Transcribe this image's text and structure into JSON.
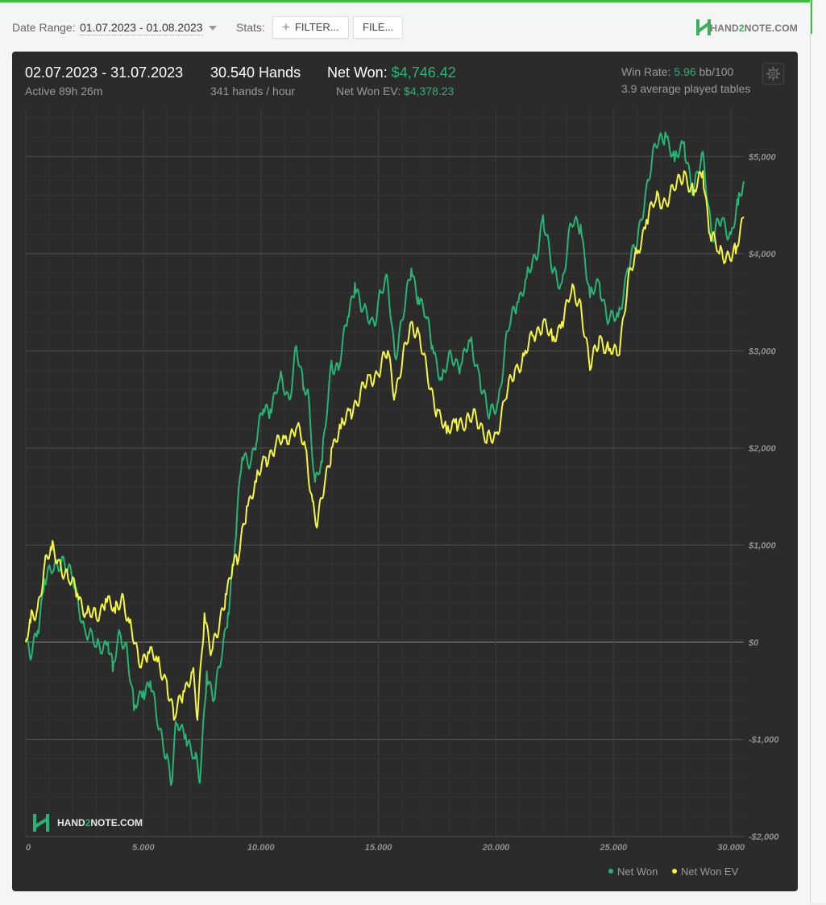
{
  "toolbar": {
    "date_range_label": "Date Range:",
    "date_range_value": "01.07.2023 - 01.08.2023",
    "stats_label": "Stats:",
    "filter_button": "FILTER...",
    "file_button": "FILE..."
  },
  "brand": {
    "logo_prefix": "HAND",
    "logo_two": "2",
    "logo_suffix": "NOTE.COM",
    "accent": "#3cbf3c",
    "green": "#26b573",
    "yellow": "#f5f542"
  },
  "summary": {
    "period": "02.07.2023 - 31.07.2023",
    "active": "Active 89h 26m",
    "hands": "30.540 Hands",
    "hands_per_hour": "341 hands / hour",
    "net_won_label": "Net Won:",
    "net_won_value": "$4,746.42",
    "net_won_ev_label": "Net Won  EV:",
    "net_won_ev_value": "$4,378.23",
    "win_rate_label": "Win Rate:",
    "win_rate_value": "5.96",
    "win_rate_unit": "bb/100",
    "tables": "3.9 average played tables"
  },
  "chart_data": {
    "type": "line",
    "xlim": [
      0,
      30540
    ],
    "ylim": [
      -2000,
      5500
    ],
    "x_ticks": [
      0,
      5000,
      10000,
      15000,
      20000,
      25000,
      30000
    ],
    "x_tick_labels": [
      "0",
      "5.000",
      "10.000",
      "15.000",
      "20.000",
      "25.000",
      "30.000"
    ],
    "y_ticks": [
      -2000,
      -1000,
      0,
      1000,
      2000,
      3000,
      4000,
      5000
    ],
    "y_tick_labels": [
      "-$2,000",
      "-$1,000",
      "$0",
      "$1,000",
      "$2,000",
      "$3,000",
      "$4,000",
      "$5,000"
    ],
    "grid": true,
    "legend_position": "bottom-right",
    "series": [
      {
        "name": "Net Won",
        "color": "#26b573",
        "points": [
          [
            0,
            0
          ],
          [
            200,
            -180
          ],
          [
            500,
            120
          ],
          [
            800,
            650
          ],
          [
            1200,
            750
          ],
          [
            1600,
            880
          ],
          [
            2000,
            620
          ],
          [
            2500,
            150
          ],
          [
            3000,
            -50
          ],
          [
            3500,
            0
          ],
          [
            3700,
            -300
          ],
          [
            4000,
            100
          ],
          [
            4300,
            -50
          ],
          [
            4600,
            -700
          ],
          [
            5000,
            -500
          ],
          [
            5300,
            -400
          ],
          [
            5600,
            -850
          ],
          [
            6000,
            -1150
          ],
          [
            6200,
            -1450
          ],
          [
            6400,
            -850
          ],
          [
            6800,
            -950
          ],
          [
            7200,
            -1200
          ],
          [
            7400,
            -1450
          ],
          [
            7700,
            -300
          ],
          [
            8000,
            -600
          ],
          [
            8300,
            -200
          ],
          [
            8600,
            300
          ],
          [
            8900,
            1000
          ],
          [
            9200,
            1900
          ],
          [
            9600,
            1900
          ],
          [
            9800,
            2050
          ],
          [
            10100,
            2400
          ],
          [
            10400,
            2400
          ],
          [
            10800,
            2700
          ],
          [
            11200,
            2500
          ],
          [
            11500,
            3050
          ],
          [
            11800,
            2600
          ],
          [
            12000,
            2600
          ],
          [
            12300,
            1650
          ],
          [
            12600,
            1850
          ],
          [
            13000,
            2900
          ],
          [
            13300,
            2800
          ],
          [
            13700,
            3350
          ],
          [
            14000,
            3700
          ],
          [
            14300,
            3400
          ],
          [
            14800,
            3300
          ],
          [
            15100,
            3600
          ],
          [
            15400,
            3700
          ],
          [
            15700,
            2950
          ],
          [
            16100,
            3400
          ],
          [
            16400,
            3850
          ],
          [
            16700,
            3550
          ],
          [
            17000,
            3350
          ],
          [
            17300,
            3050
          ],
          [
            17700,
            2700
          ],
          [
            18100,
            2950
          ],
          [
            18500,
            2850
          ],
          [
            18900,
            3100
          ],
          [
            19300,
            2750
          ],
          [
            19700,
            2300
          ],
          [
            20100,
            2500
          ],
          [
            20500,
            3200
          ],
          [
            20900,
            3500
          ],
          [
            21300,
            3750
          ],
          [
            21700,
            3950
          ],
          [
            22000,
            4400
          ],
          [
            22400,
            3800
          ],
          [
            22800,
            3700
          ],
          [
            23200,
            4300
          ],
          [
            23600,
            4300
          ],
          [
            24000,
            3550
          ],
          [
            24400,
            3700
          ],
          [
            24800,
            3300
          ],
          [
            25200,
            3350
          ],
          [
            25600,
            3850
          ],
          [
            26000,
            4100
          ],
          [
            26400,
            4700
          ],
          [
            26800,
            5100
          ],
          [
            27200,
            5250
          ],
          [
            27600,
            4950
          ],
          [
            28000,
            5150
          ],
          [
            28400,
            4600
          ],
          [
            28800,
            5050
          ],
          [
            29200,
            4150
          ],
          [
            29600,
            4350
          ],
          [
            30000,
            4200
          ],
          [
            30300,
            4500
          ],
          [
            30540,
            4746
          ]
        ]
      },
      {
        "name": "Net Won  EV",
        "color": "#f5f542",
        "points": [
          [
            0,
            0
          ],
          [
            200,
            200
          ],
          [
            500,
            350
          ],
          [
            800,
            800
          ],
          [
            1100,
            950
          ],
          [
            1400,
            850
          ],
          [
            1800,
            650
          ],
          [
            2200,
            500
          ],
          [
            2600,
            300
          ],
          [
            3000,
            250
          ],
          [
            3400,
            450
          ],
          [
            3800,
            300
          ],
          [
            4100,
            500
          ],
          [
            4400,
            200
          ],
          [
            4800,
            -200
          ],
          [
            5200,
            -100
          ],
          [
            5600,
            -200
          ],
          [
            6000,
            -400
          ],
          [
            6300,
            -800
          ],
          [
            6700,
            -500
          ],
          [
            7100,
            -300
          ],
          [
            7300,
            -800
          ],
          [
            7600,
            300
          ],
          [
            7900,
            -100
          ],
          [
            8200,
            100
          ],
          [
            8500,
            500
          ],
          [
            8800,
            800
          ],
          [
            9000,
            800
          ],
          [
            9400,
            1400
          ],
          [
            9800,
            1650
          ],
          [
            10200,
            1900
          ],
          [
            10600,
            2000
          ],
          [
            11000,
            2100
          ],
          [
            11500,
            2200
          ],
          [
            11900,
            2000
          ],
          [
            12200,
            1450
          ],
          [
            12400,
            1200
          ],
          [
            12700,
            1600
          ],
          [
            13000,
            2000
          ],
          [
            13400,
            2200
          ],
          [
            13800,
            2400
          ],
          [
            14200,
            2500
          ],
          [
            14600,
            2750
          ],
          [
            15000,
            2750
          ],
          [
            15400,
            3000
          ],
          [
            15700,
            2550
          ],
          [
            16000,
            2850
          ],
          [
            16400,
            3300
          ],
          [
            16700,
            3200
          ],
          [
            17100,
            2700
          ],
          [
            17500,
            2400
          ],
          [
            17900,
            2150
          ],
          [
            18300,
            2300
          ],
          [
            18700,
            2200
          ],
          [
            19100,
            2400
          ],
          [
            19600,
            2050
          ],
          [
            20000,
            2150
          ],
          [
            20400,
            2500
          ],
          [
            20800,
            2800
          ],
          [
            21200,
            2950
          ],
          [
            21600,
            3150
          ],
          [
            22000,
            3300
          ],
          [
            22400,
            3100
          ],
          [
            22800,
            3300
          ],
          [
            23200,
            3600
          ],
          [
            23600,
            3500
          ],
          [
            24000,
            2800
          ],
          [
            24400,
            3150
          ],
          [
            24800,
            3000
          ],
          [
            25200,
            2950
          ],
          [
            25600,
            3700
          ],
          [
            26000,
            4000
          ],
          [
            26400,
            4350
          ],
          [
            26800,
            4550
          ],
          [
            27200,
            4550
          ],
          [
            27600,
            4650
          ],
          [
            28000,
            4850
          ],
          [
            28400,
            4600
          ],
          [
            28800,
            4850
          ],
          [
            29100,
            4200
          ],
          [
            29500,
            4000
          ],
          [
            29900,
            4000
          ],
          [
            30200,
            4000
          ],
          [
            30540,
            4378
          ]
        ]
      }
    ]
  }
}
